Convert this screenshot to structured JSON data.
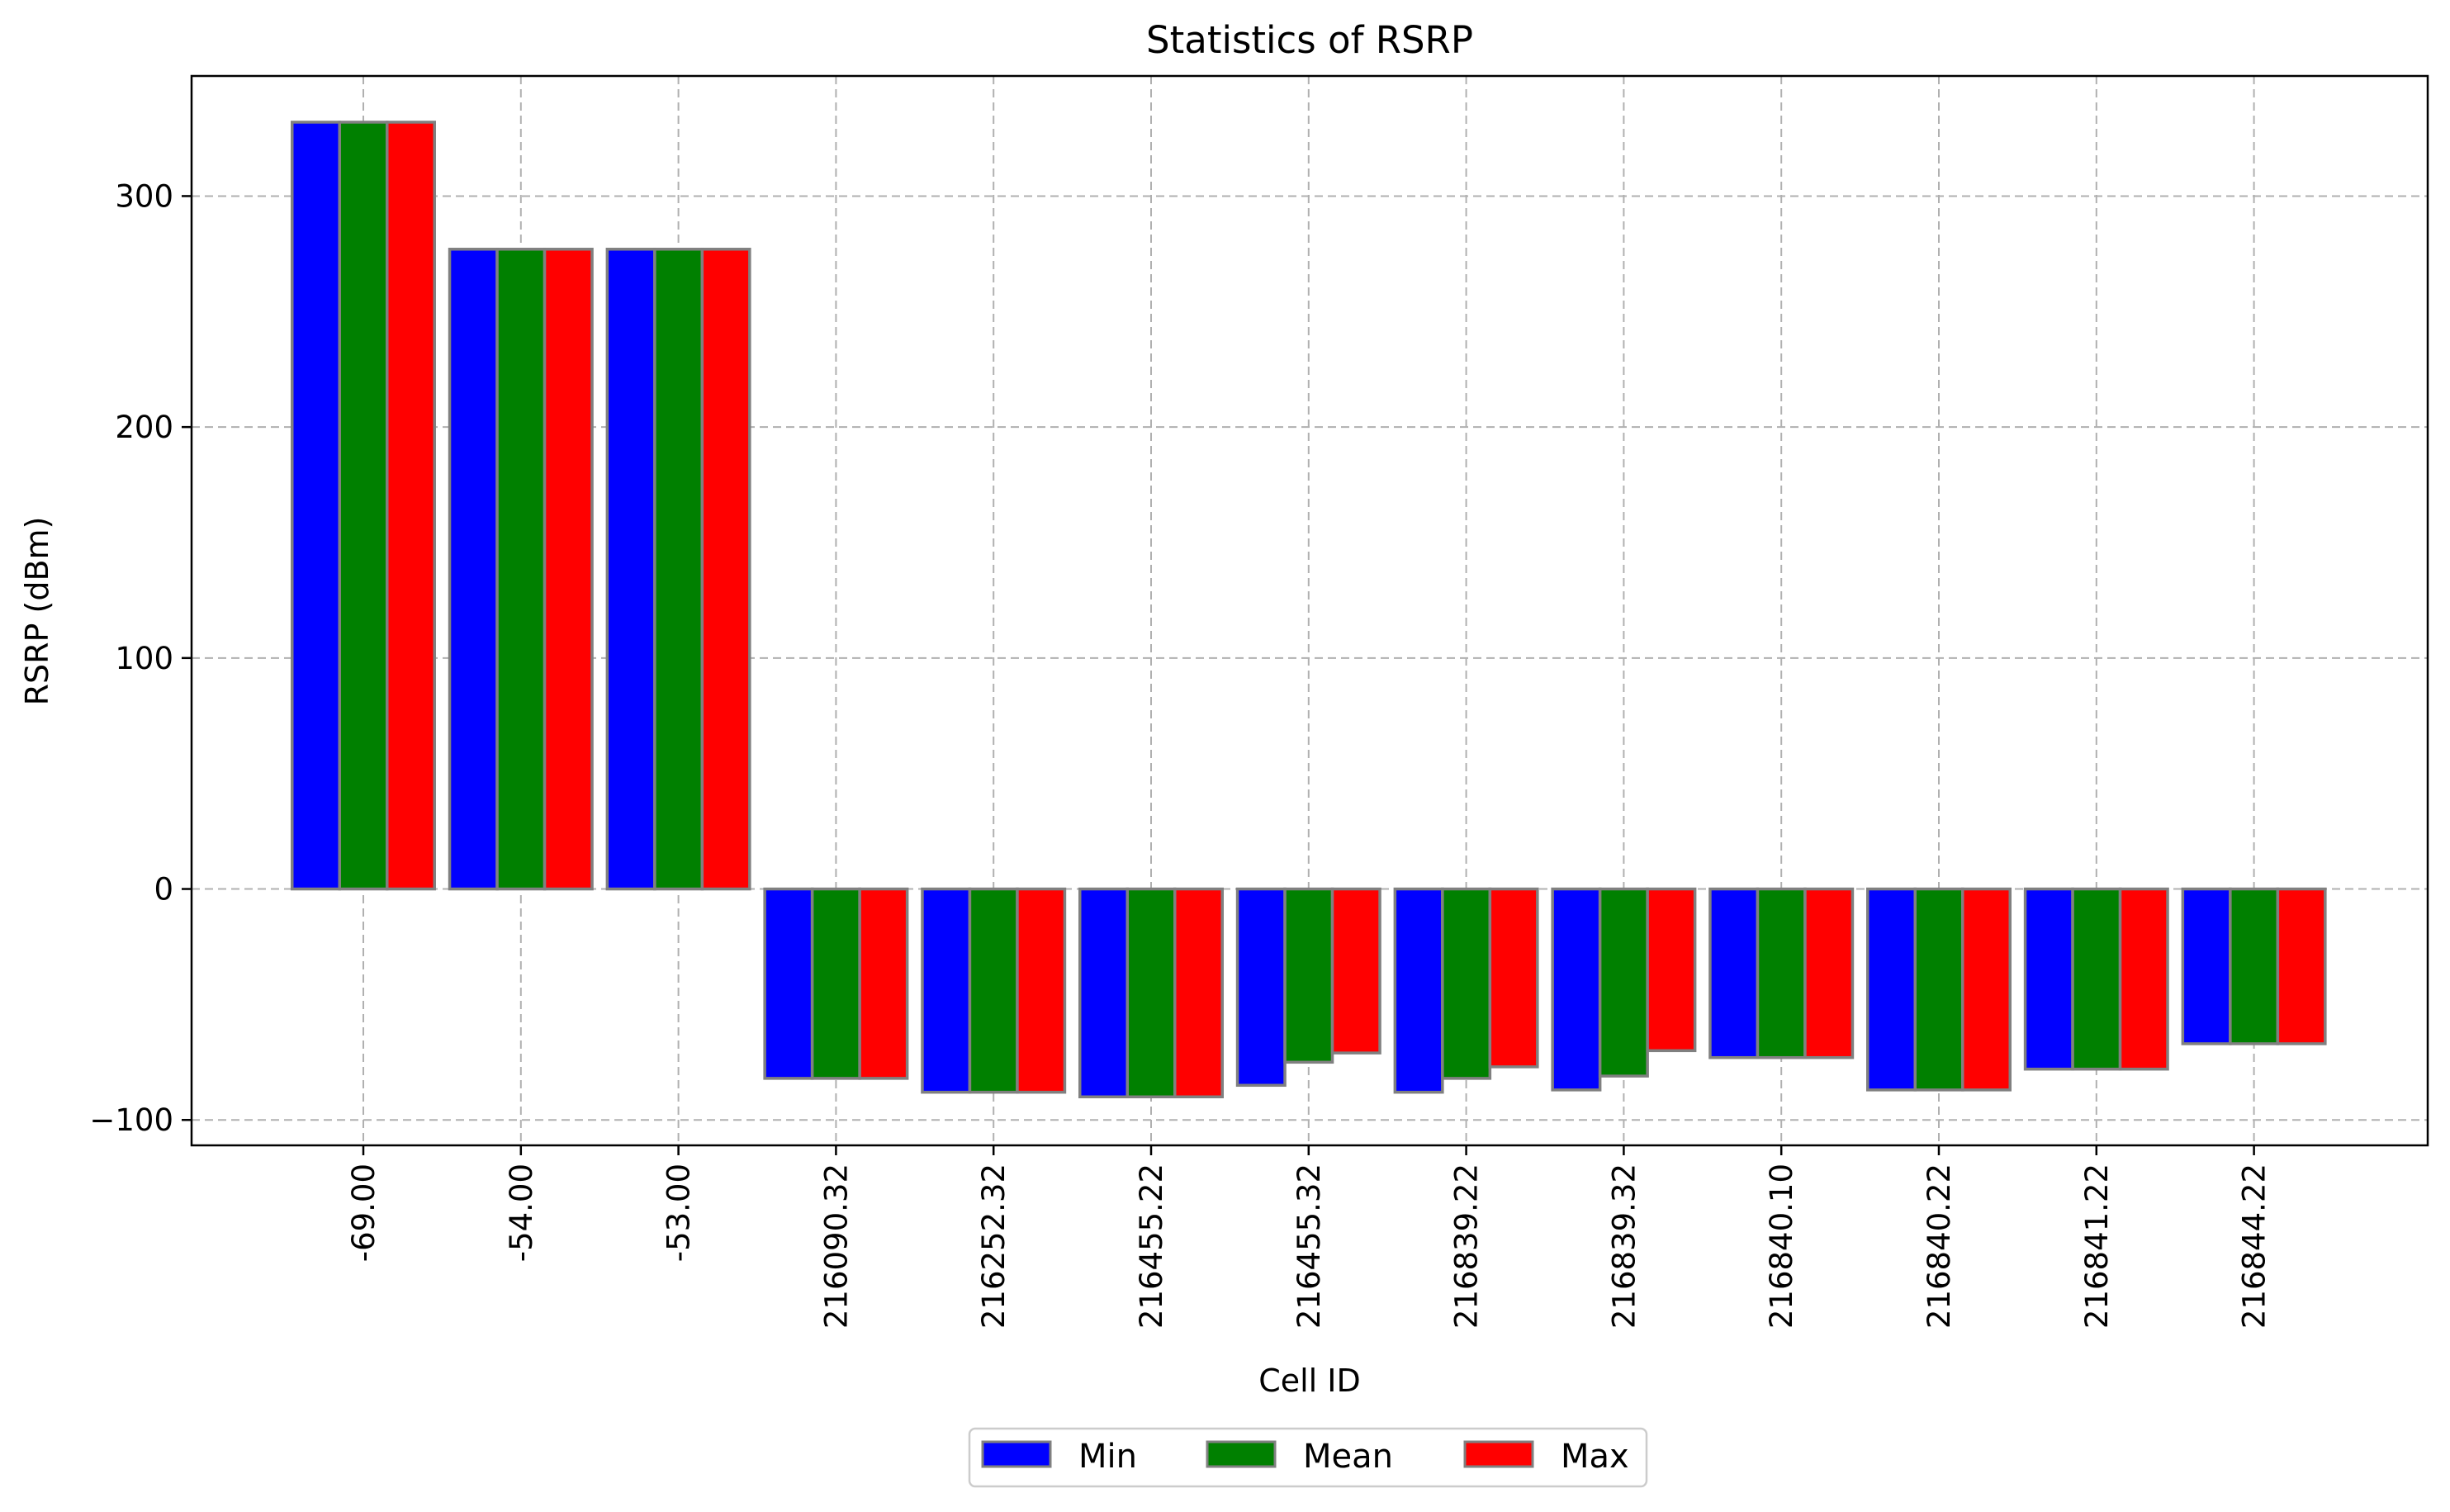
{
  "chart_data": {
    "type": "bar",
    "title": "Statistics of RSRP",
    "xlabel": "Cell ID",
    "ylabel": "RSRP (dBm)",
    "categories": [
      "-69.00",
      "-54.00",
      "-53.00",
      "216090.32",
      "216252.32",
      "216455.22",
      "216455.32",
      "216839.22",
      "216839.32",
      "216840.10",
      "216840.22",
      "216841.22",
      "216844.22"
    ],
    "series": [
      {
        "name": "Min",
        "color": "#0000ff",
        "values": [
          332,
          277,
          277,
          -82,
          -88,
          -90,
          -85,
          -88,
          -87,
          -73,
          -87,
          -78,
          -67
        ]
      },
      {
        "name": "Mean",
        "color": "#008000",
        "values": [
          332,
          277,
          277,
          -82,
          -88,
          -90,
          -75,
          -82,
          -81,
          -73,
          -87,
          -78,
          -67
        ]
      },
      {
        "name": "Max",
        "color": "#ff0000",
        "values": [
          332,
          277,
          277,
          -82,
          -88,
          -90,
          -71,
          -77,
          -70,
          -73,
          -87,
          -78,
          -67
        ]
      }
    ],
    "ylim": [
      -111,
      352
    ],
    "yticks": [
      -100,
      0,
      100,
      200,
      300
    ],
    "ytick_labels": [
      "−100",
      "0",
      "100",
      "200",
      "300"
    ],
    "grid": true,
    "legend_position": "bottom-center"
  }
}
